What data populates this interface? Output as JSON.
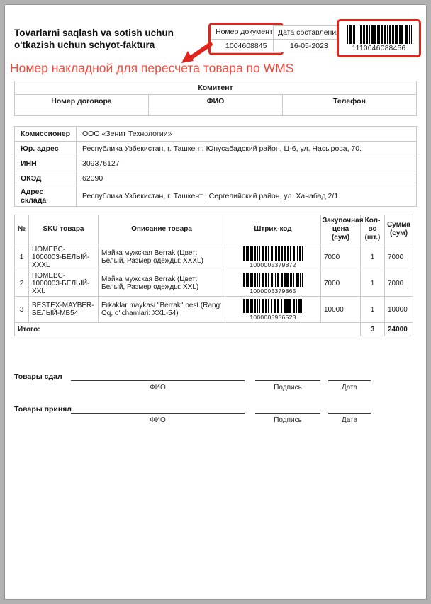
{
  "colors": {
    "accent_red": "#e2241a",
    "annotation_red": "#f5493d"
  },
  "header": {
    "title": "Tovarlarni saqlash va sotish uchun o'tkazish uchun schyot-faktura",
    "doc_number": {
      "label": "Номер документа",
      "value": "1004608845"
    },
    "date": {
      "label": "Дата составления",
      "value": "16-05-2023"
    },
    "barcode": {
      "value": "1110046088456"
    },
    "annotation": "Номер накладной для пересчета товара по WMS"
  },
  "komitent": {
    "title": "Комитент",
    "columns": [
      "Номер договора",
      "ФИО",
      "Телефон"
    ]
  },
  "details": {
    "rows": [
      {
        "label": "Комиссионер",
        "value": "ООО «Зенит Технологии»"
      },
      {
        "label": "Юр. адрес",
        "value": "Республика Узбекистан, г. Ташкент, Юнусабадский район, Ц-6, ул. Насырова, 70."
      },
      {
        "label": "ИНН",
        "value": "309376127"
      },
      {
        "label": "ОКЭД",
        "value": "62090"
      },
      {
        "label": "Адрес склада",
        "value": "Республика Узбекистан, г. Ташкент , Сергелийский район, ул. Ханабад 2/1"
      }
    ]
  },
  "items": {
    "columns": [
      "№",
      "SKU товара",
      "Описание товара",
      "Штрих-код",
      "Закупочная цена (сум)",
      "Кол-во (шт.)",
      "Сумма (сум)"
    ],
    "rows": [
      {
        "num": "1",
        "sku": "HOMEBC-1000003-БЕЛЫЙ-XXXL",
        "desc": "Майка мужская Berrak (Цвет: Белый, Размер одежды: XXXL)",
        "barcode": "1000005379872",
        "price": "7000",
        "qty": "1",
        "sum": "7000"
      },
      {
        "num": "2",
        "sku": "HOMEBC-1000003-БЕЛЫЙ-XXL",
        "desc": "Майка мужская Berrak (Цвет: Белый, Размер одежды: XXL)",
        "barcode": "1000005379865",
        "price": "7000",
        "qty": "1",
        "sum": "7000"
      },
      {
        "num": "3",
        "sku": "BESTEX-MAYBER-БЕЛЫЙ-MB54",
        "desc": "Erkaklar maykasi \"Berrak\" best (Rang: Oq, o'lchamlari: XXL-54)",
        "barcode": "1000005956523",
        "price": "10000",
        "qty": "1",
        "sum": "10000"
      }
    ],
    "total": {
      "label": "Итого:",
      "qty": "3",
      "sum": "24000"
    }
  },
  "signatures": {
    "rows": [
      {
        "label": "Товары сдал",
        "fio": "ФИО",
        "sign": "Подпись",
        "date": "Дата"
      },
      {
        "label": "Товары принял",
        "fio": "ФИО",
        "sign": "Подпись",
        "date": "Дата"
      }
    ]
  }
}
